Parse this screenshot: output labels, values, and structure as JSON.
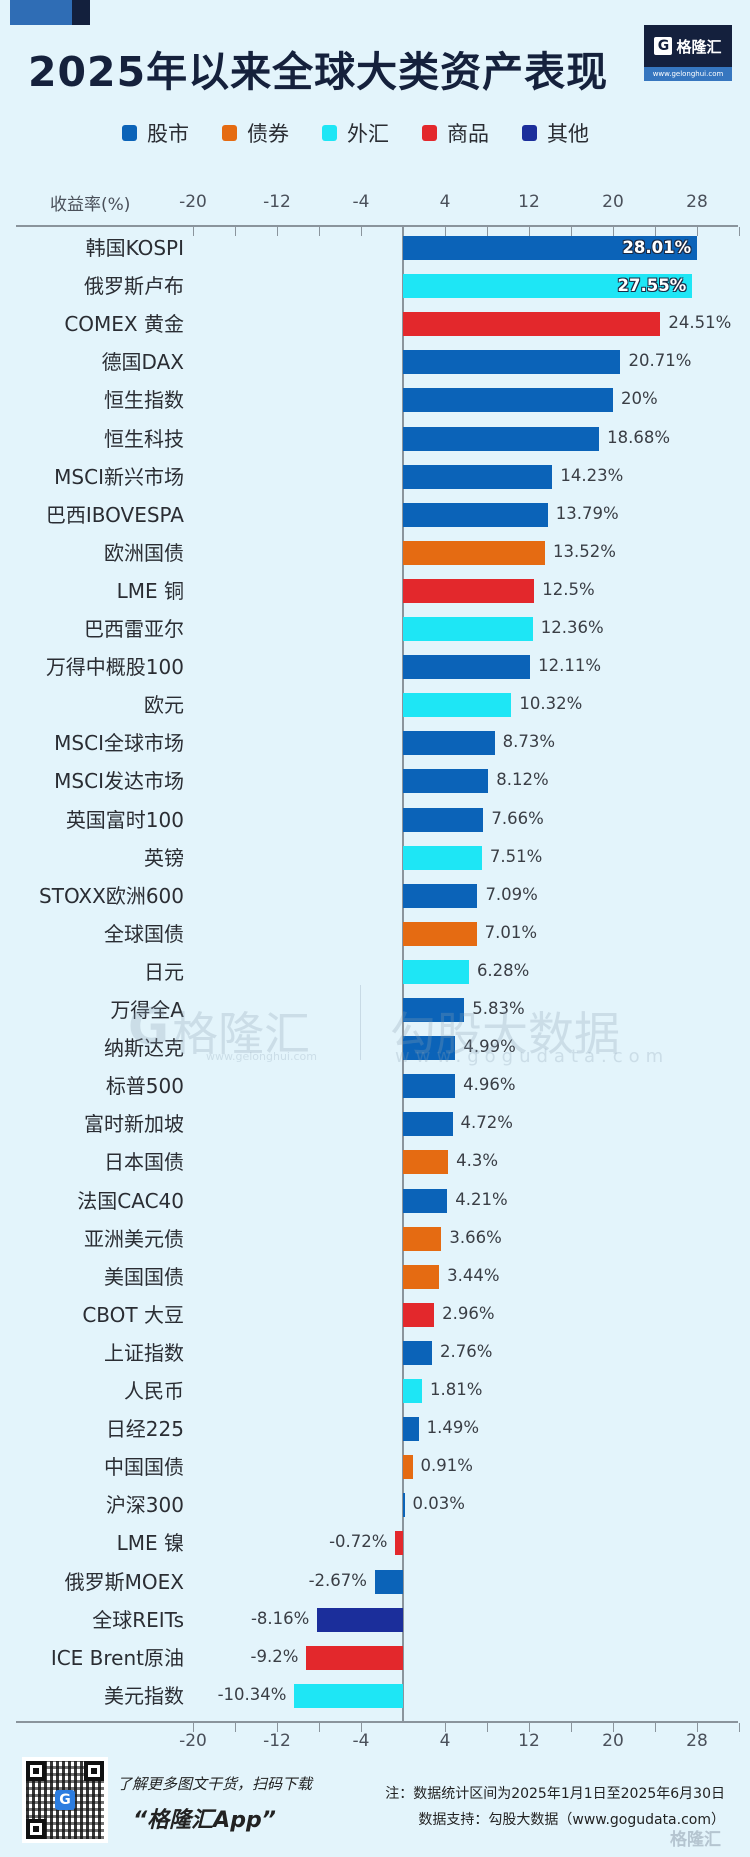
{
  "header": {
    "title": "2025年以来全球大类资产表现",
    "logo": {
      "icon": "G",
      "brand": "格隆汇",
      "url": "www.gelonghui.com"
    }
  },
  "legend": [
    {
      "label": "股市",
      "color": "#0b63b8"
    },
    {
      "label": "债券",
      "color": "#e56b12"
    },
    {
      "label": "外汇",
      "color": "#1ee6f5"
    },
    {
      "label": "商品",
      "color": "#e3282c"
    },
    {
      "label": "其他",
      "color": "#1b2e9b"
    }
  ],
  "axis": {
    "title": "收益率(%)",
    "ticks": [
      "-20",
      "-12",
      "-4",
      "4",
      "12",
      "20",
      "28"
    ]
  },
  "chart_data": {
    "type": "bar",
    "orientation": "horizontal",
    "title": "2025年以来全球大类资产表现",
    "xlabel": "收益率(%)",
    "ylabel": "",
    "xlim": [
      -24,
      32
    ],
    "xticks": [
      -20,
      -12,
      -4,
      4,
      12,
      20,
      28
    ],
    "grid": false,
    "legend_position": "top",
    "legend": [
      "股市",
      "债券",
      "外汇",
      "商品",
      "其他"
    ],
    "categories": [
      "韩国KOSPI",
      "俄罗斯卢布",
      "COMEX 黄金",
      "德国DAX",
      "恒生指数",
      "恒生科技",
      "MSCI新兴市场",
      "巴西IBOVESPA",
      "欧洲国债",
      "LME 铜",
      "巴西雷亚尔",
      "万得中概股100",
      "欧元",
      "MSCI全球市场",
      "MSCI发达市场",
      "英国富时100",
      "英镑",
      "STOXX欧洲600",
      "全球国债",
      "日元",
      "万得全A",
      "纳斯达克",
      "标普500",
      "富时新加坡",
      "日本国债",
      "法国CAC40",
      "亚洲美元债",
      "美国国债",
      "CBOT 大豆",
      "上证指数",
      "人民币",
      "日经225",
      "中国国债",
      "沪深300",
      "LME 镍",
      "俄罗斯MOEX",
      "全球REITs",
      "ICE Brent原油",
      "美元指数"
    ],
    "values": [
      28.01,
      27.55,
      24.51,
      20.71,
      20,
      18.68,
      14.23,
      13.79,
      13.52,
      12.5,
      12.36,
      12.11,
      10.32,
      8.73,
      8.12,
      7.66,
      7.51,
      7.09,
      7.01,
      6.28,
      5.83,
      4.99,
      4.96,
      4.72,
      4.3,
      4.21,
      3.66,
      3.44,
      2.96,
      2.76,
      1.81,
      1.49,
      0.91,
      0.03,
      -0.72,
      -2.67,
      -8.16,
      -9.2,
      -10.34
    ],
    "series_class": [
      "股市",
      "外汇",
      "商品",
      "股市",
      "股市",
      "股市",
      "股市",
      "股市",
      "债券",
      "商品",
      "外汇",
      "股市",
      "外汇",
      "股市",
      "股市",
      "股市",
      "外汇",
      "股市",
      "债券",
      "外汇",
      "股市",
      "股市",
      "股市",
      "股市",
      "债券",
      "股市",
      "债券",
      "债券",
      "商品",
      "股市",
      "外汇",
      "股市",
      "债券",
      "股市",
      "商品",
      "股市",
      "其他",
      "商品",
      "外汇"
    ]
  },
  "rows": [
    {
      "label": "韩国KOSPI",
      "value": 28.01,
      "text": "28.01%",
      "color": "#0b63b8",
      "inside": true
    },
    {
      "label": "俄罗斯卢布",
      "value": 27.55,
      "text": "27.55%",
      "color": "#1ee6f5",
      "inside": true
    },
    {
      "label": "COMEX 黄金",
      "value": 24.51,
      "text": "24.51%",
      "color": "#e3282c"
    },
    {
      "label": "德国DAX",
      "value": 20.71,
      "text": "20.71%",
      "color": "#0b63b8"
    },
    {
      "label": "恒生指数",
      "value": 20,
      "text": "20%",
      "color": "#0b63b8"
    },
    {
      "label": "恒生科技",
      "value": 18.68,
      "text": "18.68%",
      "color": "#0b63b8"
    },
    {
      "label": "MSCI新兴市场",
      "value": 14.23,
      "text": "14.23%",
      "color": "#0b63b8"
    },
    {
      "label": "巴西IBOVESPA",
      "value": 13.79,
      "text": "13.79%",
      "color": "#0b63b8"
    },
    {
      "label": "欧洲国债",
      "value": 13.52,
      "text": "13.52%",
      "color": "#e56b12"
    },
    {
      "label": "LME 铜",
      "value": 12.5,
      "text": "12.5%",
      "color": "#e3282c"
    },
    {
      "label": "巴西雷亚尔",
      "value": 12.36,
      "text": "12.36%",
      "color": "#1ee6f5"
    },
    {
      "label": "万得中概股100",
      "value": 12.11,
      "text": "12.11%",
      "color": "#0b63b8"
    },
    {
      "label": "欧元",
      "value": 10.32,
      "text": "10.32%",
      "color": "#1ee6f5"
    },
    {
      "label": "MSCI全球市场",
      "value": 8.73,
      "text": "8.73%",
      "color": "#0b63b8"
    },
    {
      "label": "MSCI发达市场",
      "value": 8.12,
      "text": "8.12%",
      "color": "#0b63b8"
    },
    {
      "label": "英国富时100",
      "value": 7.66,
      "text": "7.66%",
      "color": "#0b63b8"
    },
    {
      "label": "英镑",
      "value": 7.51,
      "text": "7.51%",
      "color": "#1ee6f5"
    },
    {
      "label": "STOXX欧洲600",
      "value": 7.09,
      "text": "7.09%",
      "color": "#0b63b8"
    },
    {
      "label": "全球国债",
      "value": 7.01,
      "text": "7.01%",
      "color": "#e56b12"
    },
    {
      "label": "日元",
      "value": 6.28,
      "text": "6.28%",
      "color": "#1ee6f5"
    },
    {
      "label": "万得全A",
      "value": 5.83,
      "text": "5.83%",
      "color": "#0b63b8"
    },
    {
      "label": "纳斯达克",
      "value": 4.99,
      "text": "4.99%",
      "color": "#0b63b8"
    },
    {
      "label": "标普500",
      "value": 4.96,
      "text": "4.96%",
      "color": "#0b63b8"
    },
    {
      "label": "富时新加坡",
      "value": 4.72,
      "text": "4.72%",
      "color": "#0b63b8"
    },
    {
      "label": "日本国债",
      "value": 4.3,
      "text": "4.3%",
      "color": "#e56b12"
    },
    {
      "label": "法国CAC40",
      "value": 4.21,
      "text": "4.21%",
      "color": "#0b63b8"
    },
    {
      "label": "亚洲美元债",
      "value": 3.66,
      "text": "3.66%",
      "color": "#e56b12"
    },
    {
      "label": "美国国债",
      "value": 3.44,
      "text": "3.44%",
      "color": "#e56b12"
    },
    {
      "label": "CBOT 大豆",
      "value": 2.96,
      "text": "2.96%",
      "color": "#e3282c"
    },
    {
      "label": "上证指数",
      "value": 2.76,
      "text": "2.76%",
      "color": "#0b63b8"
    },
    {
      "label": "人民币",
      "value": 1.81,
      "text": "1.81%",
      "color": "#1ee6f5"
    },
    {
      "label": "日经225",
      "value": 1.49,
      "text": "1.49%",
      "color": "#0b63b8"
    },
    {
      "label": "中国国债",
      "value": 0.91,
      "text": "0.91%",
      "color": "#e56b12"
    },
    {
      "label": "沪深300",
      "value": 0.03,
      "text": "0.03%",
      "color": "#0b63b8"
    },
    {
      "label": "LME 镍",
      "value": -0.72,
      "text": "-0.72%",
      "color": "#e3282c"
    },
    {
      "label": "俄罗斯MOEX",
      "value": -2.67,
      "text": "-2.67%",
      "color": "#0b63b8"
    },
    {
      "label": "全球REITs",
      "value": -8.16,
      "text": "-8.16%",
      "color": "#1b2e9b"
    },
    {
      "label": "ICE Brent原油",
      "value": -9.2,
      "text": "-9.2%",
      "color": "#e3282c"
    },
    {
      "label": "美元指数",
      "value": -10.34,
      "text": "-10.34%",
      "color": "#1ee6f5"
    }
  ],
  "watermark": {
    "brand": "格隆汇",
    "brand_url": "www.gelonghui.com",
    "data_brand": "勾股大数据",
    "data_url": "www.gogudata.com"
  },
  "footer": {
    "promo_line": "了解更多图文干货，扫码下载",
    "app_name": "“格隆汇App”",
    "qr_icon": "G",
    "note": "注：数据统计区间为2025年1月1日至2025年6月30日",
    "source": "数据支持：勾股大数据（www.gogudata.com）",
    "corner_watermark": "格隆汇"
  }
}
